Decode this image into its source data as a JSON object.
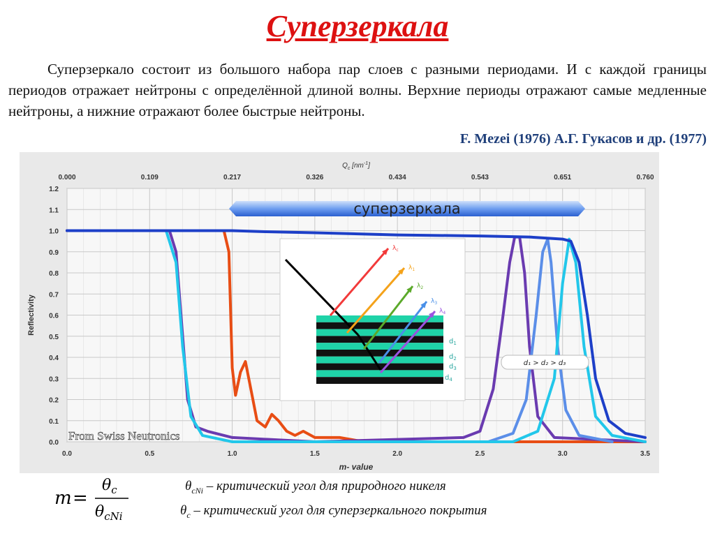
{
  "page": {
    "title": "Суперзеркала",
    "paragraph": "Суперзеркало состоит из большого набора пар слоев с разными периодами. И с каждой границы периодов отражает нейтроны с определённой длиной волны. Верхние периоды отражают самые медленные нейтроны, а  нижние отражают более быстрые нейтроны.",
    "reference": "F. Mezei (1976) А.Г. Гукасов и др. (1977)",
    "note_cni": "– критический угол для природного никеля",
    "note_c": "– критический угол для суперзеркального покрытия",
    "note_cni_symbol": "θ",
    "note_cni_sub": "cNi",
    "note_c_symbol": "θ",
    "note_c_sub": "c"
  },
  "formula": {
    "lhs": "m",
    "eq": "=",
    "numerator": "θ",
    "numerator_sub": "c",
    "denominator": "θ",
    "denominator_sub": "cNi"
  },
  "chart_data": {
    "type": "line",
    "xlabel": "m- value",
    "ylabel": "Reflectivity",
    "x2label": "Q",
    "x2label_sub": "c",
    "x2label_unit": " [nm",
    "x2label_sup": "-1",
    "x2label_end": "]",
    "xlim": [
      0,
      3.5
    ],
    "ylim": [
      0,
      1.2
    ],
    "x_ticks": [
      "0.0",
      "0.5",
      "1.0",
      "1.5",
      "2.0",
      "2.5",
      "3.0",
      "3.5"
    ],
    "y_ticks": [
      "0.0",
      "0.1",
      "0.2",
      "0.3",
      "0.4",
      "0.5",
      "0.6",
      "0.7",
      "0.8",
      "0.9",
      "1.0",
      "1.1",
      "1.2"
    ],
    "x2_ticks": [
      "0.000",
      "0.109",
      "0.217",
      "0.326",
      "0.434",
      "0.543",
      "0.651",
      "0.760"
    ],
    "grid": true,
    "banner_label": "суперзеркала",
    "watermark": "From Swiss Neutronics",
    "ratio_label": "d₁ > d₂ > d₃",
    "colors": {
      "orange": "#e84d14",
      "purple": "#6a3bb0",
      "blue": "#1d3fc8",
      "steel": "#5b8ee8",
      "cyan": "#22c7ea",
      "darkblue": "#1a2d9e"
    },
    "series": [
      {
        "color": "orange",
        "points": [
          [
            0,
            1.0
          ],
          [
            0.95,
            1.0
          ],
          [
            0.98,
            0.9
          ],
          [
            1.0,
            0.35
          ],
          [
            1.02,
            0.22
          ],
          [
            1.05,
            0.33
          ],
          [
            1.08,
            0.38
          ],
          [
            1.12,
            0.22
          ],
          [
            1.15,
            0.1
          ],
          [
            1.2,
            0.07
          ],
          [
            1.24,
            0.13
          ],
          [
            1.28,
            0.1
          ],
          [
            1.33,
            0.05
          ],
          [
            1.38,
            0.03
          ],
          [
            1.43,
            0.05
          ],
          [
            1.5,
            0.02
          ],
          [
            1.65,
            0.02
          ],
          [
            1.8,
            0.0
          ],
          [
            3.5,
            0.0
          ]
        ]
      },
      {
        "color": "purple",
        "points": [
          [
            0,
            1.0
          ],
          [
            0.62,
            1.0
          ],
          [
            0.66,
            0.9
          ],
          [
            0.7,
            0.5
          ],
          [
            0.73,
            0.2
          ],
          [
            0.78,
            0.07
          ],
          [
            0.85,
            0.05
          ],
          [
            1.0,
            0.02
          ],
          [
            1.5,
            0.0
          ],
          [
            2.4,
            0.02
          ],
          [
            2.5,
            0.05
          ],
          [
            2.58,
            0.25
          ],
          [
            2.64,
            0.6
          ],
          [
            2.68,
            0.85
          ],
          [
            2.71,
            0.97
          ],
          [
            2.74,
            0.97
          ],
          [
            2.77,
            0.8
          ],
          [
            2.8,
            0.45
          ],
          [
            2.85,
            0.12
          ],
          [
            2.95,
            0.02
          ],
          [
            3.5,
            0.0
          ]
        ]
      },
      {
        "color": "steel",
        "points": [
          [
            2.55,
            0.0
          ],
          [
            2.7,
            0.04
          ],
          [
            2.78,
            0.2
          ],
          [
            2.84,
            0.6
          ],
          [
            2.88,
            0.9
          ],
          [
            2.91,
            0.96
          ],
          [
            2.93,
            0.85
          ],
          [
            2.97,
            0.45
          ],
          [
            3.02,
            0.15
          ],
          [
            3.1,
            0.03
          ],
          [
            3.3,
            0.0
          ]
        ]
      },
      {
        "color": "cyan",
        "points": [
          [
            0.6,
            1.0
          ],
          [
            0.66,
            0.85
          ],
          [
            0.7,
            0.45
          ],
          [
            0.75,
            0.12
          ],
          [
            0.82,
            0.03
          ],
          [
            1.0,
            0.0
          ],
          [
            2.7,
            0.0
          ],
          [
            2.85,
            0.05
          ],
          [
            2.95,
            0.3
          ],
          [
            3.0,
            0.75
          ],
          [
            3.04,
            0.96
          ],
          [
            3.08,
            0.85
          ],
          [
            3.13,
            0.45
          ],
          [
            3.2,
            0.12
          ],
          [
            3.3,
            0.03
          ],
          [
            3.5,
            0.0
          ]
        ]
      },
      {
        "color": "blue",
        "points": [
          [
            0,
            1.0
          ],
          [
            1.0,
            1.0
          ],
          [
            1.2,
            0.995
          ],
          [
            1.5,
            0.99
          ],
          [
            2.0,
            0.98
          ],
          [
            2.5,
            0.975
          ],
          [
            2.8,
            0.97
          ],
          [
            3.0,
            0.96
          ],
          [
            3.05,
            0.95
          ],
          [
            3.1,
            0.85
          ],
          [
            3.15,
            0.6
          ],
          [
            3.2,
            0.3
          ],
          [
            3.28,
            0.1
          ],
          [
            3.38,
            0.04
          ],
          [
            3.5,
            0.02
          ]
        ]
      }
    ],
    "inset": {
      "beam_labels": [
        "λ",
        "λ",
        "λ",
        "λ",
        "λ"
      ],
      "beam_subs": [
        "c",
        "1",
        "2",
        "3",
        "4"
      ],
      "layer_labels": [
        "d",
        "d",
        "d",
        "d"
      ],
      "layer_subs": [
        "1",
        "2",
        "3",
        "4"
      ]
    }
  }
}
